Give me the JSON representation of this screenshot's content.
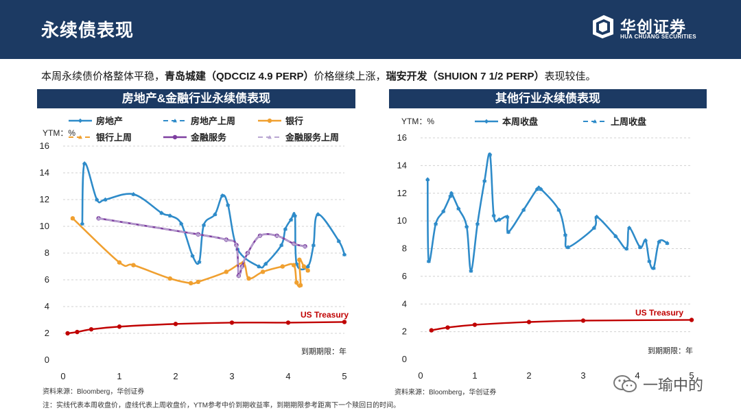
{
  "header": {
    "title": "永续债表现",
    "logo_name": "华创证券",
    "logo_en": "HUA CHUANG SECURITIES"
  },
  "summary": {
    "part1": "本周永续债价格整体平稳，",
    "bold1": "青岛城建（QDCCIZ 4.9 PERP）",
    "part2": "价格继续上涨，",
    "bold2": "瑞安开发（SHUION 7 1/2 PERP）",
    "part3": "表现较佳。"
  },
  "panels": {
    "left_title": "房地产&金融行业永续债表现",
    "right_title": "其他行业永续债表现"
  },
  "footer": {
    "source_left": "资料来源：Bloomberg，华创证券",
    "source_right": "资料来源：Bloomberg，华创证券",
    "note": "注：实线代表本周收盘价，虚线代表上周收盘价，YTM参考中价到期收益率，到期期限参考距离下一个赎回日的时间。",
    "watermark": "一瑜中的"
  },
  "colors": {
    "navy": "#1c3a63",
    "realestate": "#2e8bc9",
    "bank": "#f0a030",
    "finance": "#7e3fa0",
    "finance_prev": "#b9a6d2",
    "treasury": "#c00000"
  },
  "chart_data": [
    {
      "type": "line",
      "title": "房地产&金融行业永续债表现",
      "ylabel": "YTM：%",
      "xlabel": "到期期限：年",
      "xlim": [
        0,
        5
      ],
      "ylim": [
        0,
        16
      ],
      "xticks": [
        0,
        1,
        2,
        3,
        4,
        5
      ],
      "yticks": [
        0,
        2,
        4,
        6,
        8,
        10,
        12,
        14,
        16
      ],
      "legend": [
        "房地产",
        "房地产上周",
        "银行",
        "银行上周",
        "金融服务",
        "金融服务上周"
      ],
      "treasury_label": "US Treasury",
      "series": [
        {
          "name": "房地产",
          "color": "#2e8bc9",
          "dash": false,
          "marker": "diamond",
          "points": [
            [
              0.34,
              10.2
            ],
            [
              0.38,
              14.7
            ],
            [
              0.6,
              12.0
            ],
            [
              0.75,
              12.0
            ],
            [
              1.25,
              12.4
            ],
            [
              1.75,
              11.0
            ],
            [
              1.9,
              10.8
            ],
            [
              2.1,
              10.2
            ],
            [
              2.3,
              7.8
            ],
            [
              2.42,
              7.35
            ],
            [
              2.5,
              10.1
            ],
            [
              2.7,
              10.9
            ],
            [
              2.83,
              12.3
            ],
            [
              2.93,
              11.6
            ],
            [
              3.1,
              8.3
            ],
            [
              3.48,
              7.0
            ],
            [
              3.6,
              7.2
            ],
            [
              3.88,
              8.6
            ],
            [
              3.95,
              9.8
            ],
            [
              4.05,
              10.5
            ],
            [
              4.12,
              10.8
            ],
            [
              4.15,
              7.2
            ],
            [
              4.35,
              7.0
            ],
            [
              4.45,
              8.6
            ],
            [
              4.53,
              10.9
            ],
            [
              4.9,
              8.9
            ],
            [
              5.0,
              7.9
            ]
          ]
        },
        {
          "name": "房地产上周",
          "color": "#2e8bc9",
          "dash": true,
          "marker": "triangle",
          "points": [
            [
              0.34,
              10.2
            ],
            [
              0.38,
              14.7
            ],
            [
              0.6,
              12.0
            ],
            [
              0.75,
              12.0
            ],
            [
              1.25,
              12.4
            ],
            [
              1.75,
              11.0
            ],
            [
              1.9,
              10.8
            ],
            [
              2.1,
              10.2
            ],
            [
              2.3,
              7.8
            ],
            [
              2.42,
              7.35
            ],
            [
              2.5,
              10.1
            ],
            [
              2.7,
              10.9
            ],
            [
              2.83,
              12.3
            ],
            [
              2.93,
              11.6
            ],
            [
              3.1,
              8.3
            ],
            [
              3.48,
              7.0
            ],
            [
              3.6,
              7.2
            ],
            [
              3.88,
              8.6
            ],
            [
              3.95,
              9.8
            ],
            [
              4.05,
              10.5
            ],
            [
              4.12,
              10.8
            ],
            [
              4.15,
              7.2
            ],
            [
              4.35,
              7.0
            ],
            [
              4.45,
              8.6
            ],
            [
              4.53,
              10.9
            ],
            [
              4.9,
              8.9
            ],
            [
              5.0,
              7.9
            ]
          ]
        },
        {
          "name": "银行",
          "color": "#f0a030",
          "dash": false,
          "marker": "circle",
          "points": [
            [
              0.17,
              10.6
            ],
            [
              1.0,
              7.3
            ],
            [
              1.25,
              7.1
            ],
            [
              1.9,
              6.1
            ],
            [
              2.27,
              5.75
            ],
            [
              2.4,
              5.85
            ],
            [
              2.9,
              6.6
            ],
            [
              3.2,
              7.25
            ],
            [
              3.3,
              6.1
            ],
            [
              3.55,
              6.6
            ],
            [
              3.9,
              7.0
            ],
            [
              4.1,
              7.1
            ],
            [
              4.15,
              5.8
            ],
            [
              4.22,
              5.6
            ],
            [
              4.2,
              7.5
            ],
            [
              4.28,
              7.0
            ],
            [
              4.35,
              6.7
            ]
          ]
        },
        {
          "name": "银行上周",
          "color": "#f0a030",
          "dash": true,
          "marker": "triangle",
          "points": [
            [
              0.17,
              10.6
            ],
            [
              1.0,
              7.3
            ],
            [
              1.25,
              7.1
            ],
            [
              1.9,
              6.1
            ],
            [
              2.27,
              5.75
            ],
            [
              2.4,
              5.85
            ],
            [
              2.9,
              6.6
            ],
            [
              3.2,
              7.25
            ],
            [
              3.3,
              6.1
            ],
            [
              3.55,
              6.6
            ],
            [
              3.9,
              7.0
            ],
            [
              4.1,
              7.1
            ],
            [
              4.15,
              5.8
            ],
            [
              4.22,
              5.6
            ],
            [
              4.2,
              7.5
            ],
            [
              4.28,
              7.0
            ],
            [
              4.35,
              6.7
            ]
          ]
        },
        {
          "name": "金融服务",
          "color": "#7e3fa0",
          "dash": false,
          "marker": "circle",
          "points": [
            [
              0.63,
              10.6
            ],
            [
              2.4,
              9.4
            ],
            [
              2.9,
              9.0
            ],
            [
              3.08,
              8.6
            ],
            [
              3.12,
              6.3
            ],
            [
              3.18,
              7.0
            ],
            [
              3.28,
              8.0
            ],
            [
              3.5,
              9.3
            ],
            [
              3.8,
              9.3
            ],
            [
              4.1,
              8.7
            ],
            [
              4.3,
              8.5
            ]
          ]
        },
        {
          "name": "金融服务上周",
          "color": "#b9a6d2",
          "dash": true,
          "marker": "triangle",
          "points": [
            [
              0.63,
              10.6
            ],
            [
              2.4,
              9.4
            ],
            [
              2.9,
              9.0
            ],
            [
              3.08,
              8.6
            ],
            [
              3.12,
              6.3
            ],
            [
              3.18,
              7.0
            ],
            [
              3.28,
              8.0
            ],
            [
              3.5,
              9.3
            ],
            [
              3.8,
              9.3
            ],
            [
              4.1,
              8.7
            ],
            [
              4.3,
              8.5
            ]
          ]
        },
        {
          "name": "US Treasury",
          "color": "#c00000",
          "dash": false,
          "marker": "circle",
          "points": [
            [
              0.08,
              2.0
            ],
            [
              0.25,
              2.1
            ],
            [
              0.5,
              2.3
            ],
            [
              1.0,
              2.5
            ],
            [
              2.0,
              2.7
            ],
            [
              3.0,
              2.8
            ],
            [
              4.0,
              2.8
            ],
            [
              5.0,
              2.85
            ]
          ]
        }
      ]
    },
    {
      "type": "line",
      "title": "其他行业永续债表现",
      "ylabel": "YTM：%",
      "xlabel": "到期期限：年",
      "xlim": [
        0,
        5
      ],
      "ylim": [
        0,
        16
      ],
      "xticks": [
        0,
        1,
        2,
        3,
        4,
        5
      ],
      "yticks": [
        0,
        2,
        4,
        6,
        8,
        10,
        12,
        14,
        16
      ],
      "legend": [
        "本周收盘",
        "上周收盘"
      ],
      "treasury_label": "US Treasury",
      "series": [
        {
          "name": "本周收盘",
          "color": "#2e8bc9",
          "dash": false,
          "marker": "diamond",
          "points": [
            [
              0.13,
              13.0
            ],
            [
              0.15,
              7.1
            ],
            [
              0.28,
              9.8
            ],
            [
              0.42,
              10.7
            ],
            [
              0.55,
              11.8
            ],
            [
              0.57,
              12.0
            ],
            [
              0.7,
              10.9
            ],
            [
              0.85,
              9.6
            ],
            [
              0.93,
              6.4
            ],
            [
              1.05,
              9.8
            ],
            [
              1.18,
              12.9
            ],
            [
              1.28,
              14.8
            ],
            [
              1.35,
              10.4
            ],
            [
              1.45,
              10.1
            ],
            [
              1.6,
              10.3
            ],
            [
              1.62,
              9.2
            ],
            [
              1.9,
              10.8
            ],
            [
              2.15,
              12.3
            ],
            [
              2.22,
              12.3
            ],
            [
              2.55,
              10.8
            ],
            [
              2.67,
              9.0
            ],
            [
              2.72,
              8.1
            ],
            [
              3.2,
              9.5
            ],
            [
              3.25,
              10.3
            ],
            [
              3.6,
              8.9
            ],
            [
              3.8,
              8.0
            ],
            [
              3.85,
              9.5
            ],
            [
              4.05,
              8.1
            ],
            [
              4.15,
              8.6
            ],
            [
              4.22,
              7.1
            ],
            [
              4.3,
              6.6
            ],
            [
              4.4,
              8.5
            ],
            [
              4.55,
              8.4
            ]
          ]
        },
        {
          "name": "上周收盘",
          "color": "#2e8bc9",
          "dash": true,
          "marker": "triangle",
          "points": [
            [
              0.13,
              13.0
            ],
            [
              0.15,
              7.1
            ],
            [
              0.28,
              9.8
            ],
            [
              0.42,
              10.7
            ],
            [
              0.55,
              11.8
            ],
            [
              0.57,
              12.0
            ],
            [
              0.7,
              10.9
            ],
            [
              0.85,
              9.6
            ],
            [
              0.93,
              6.4
            ],
            [
              1.05,
              9.8
            ],
            [
              1.18,
              12.9
            ],
            [
              1.28,
              14.8
            ],
            [
              1.35,
              10.4
            ],
            [
              1.45,
              10.1
            ],
            [
              1.6,
              10.3
            ],
            [
              1.62,
              9.2
            ],
            [
              1.9,
              10.8
            ],
            [
              2.15,
              12.3
            ],
            [
              2.22,
              12.3
            ],
            [
              2.55,
              10.8
            ],
            [
              2.67,
              9.0
            ],
            [
              2.72,
              8.1
            ],
            [
              3.2,
              9.5
            ],
            [
              3.25,
              10.3
            ],
            [
              3.6,
              8.9
            ],
            [
              3.8,
              8.0
            ],
            [
              3.85,
              9.5
            ],
            [
              4.05,
              8.1
            ],
            [
              4.15,
              8.6
            ],
            [
              4.22,
              7.1
            ],
            [
              4.3,
              6.6
            ],
            [
              4.4,
              8.5
            ],
            [
              4.55,
              8.4
            ]
          ]
        },
        {
          "name": "US Treasury",
          "color": "#c00000",
          "dash": false,
          "marker": "circle",
          "points": [
            [
              0.2,
              2.1
            ],
            [
              0.5,
              2.3
            ],
            [
              1.0,
              2.5
            ],
            [
              2.0,
              2.7
            ],
            [
              3.0,
              2.8
            ],
            [
              5.0,
              2.85
            ]
          ]
        }
      ]
    }
  ]
}
